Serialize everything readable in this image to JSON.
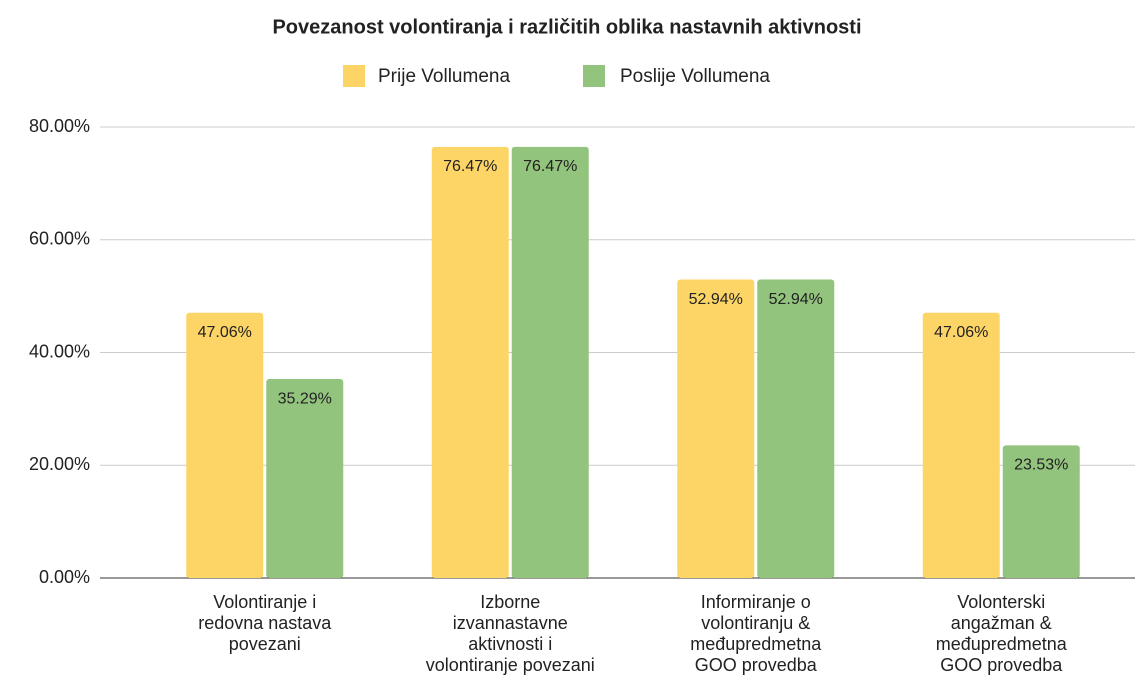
{
  "chart_data": {
    "type": "bar",
    "title": "Povezanost volontiranja i različitih oblika nastavnih aktivnosti",
    "categories": [
      "Volontiranje i\nredovna nastava\npovezani",
      "Izborne\nizvannastavne\naktivnosti i\nvolontiranje povezani",
      "Informiranje o\nvolontiranju &\nmeđupredmetna\nGOO provedba",
      "Volonterski\nangažman &\nmeđupredmetna\nGOO provedba"
    ],
    "series": [
      {
        "name": "Prije Vollumena",
        "color": "#fdd566",
        "values": [
          47.06,
          76.47,
          52.94,
          47.06
        ],
        "value_labels": [
          "47.06%",
          "76.47%",
          "52.94%",
          "47.06%"
        ]
      },
      {
        "name": "Poslije Vollumena",
        "color": "#93c47d",
        "values": [
          35.29,
          76.47,
          52.94,
          23.53
        ],
        "value_labels": [
          "35.29%",
          "76.47%",
          "52.94%",
          "23.53%"
        ]
      }
    ],
    "ylim": [
      0,
      80
    ],
    "yticks": [
      {
        "value": 0,
        "label": "0.00%"
      },
      {
        "value": 20,
        "label": "20.00%"
      },
      {
        "value": 40,
        "label": "40.00%"
      },
      {
        "value": 60,
        "label": "60.00%"
      },
      {
        "value": 80,
        "label": "80.00%"
      }
    ],
    "grid": true,
    "legend": "top"
  }
}
